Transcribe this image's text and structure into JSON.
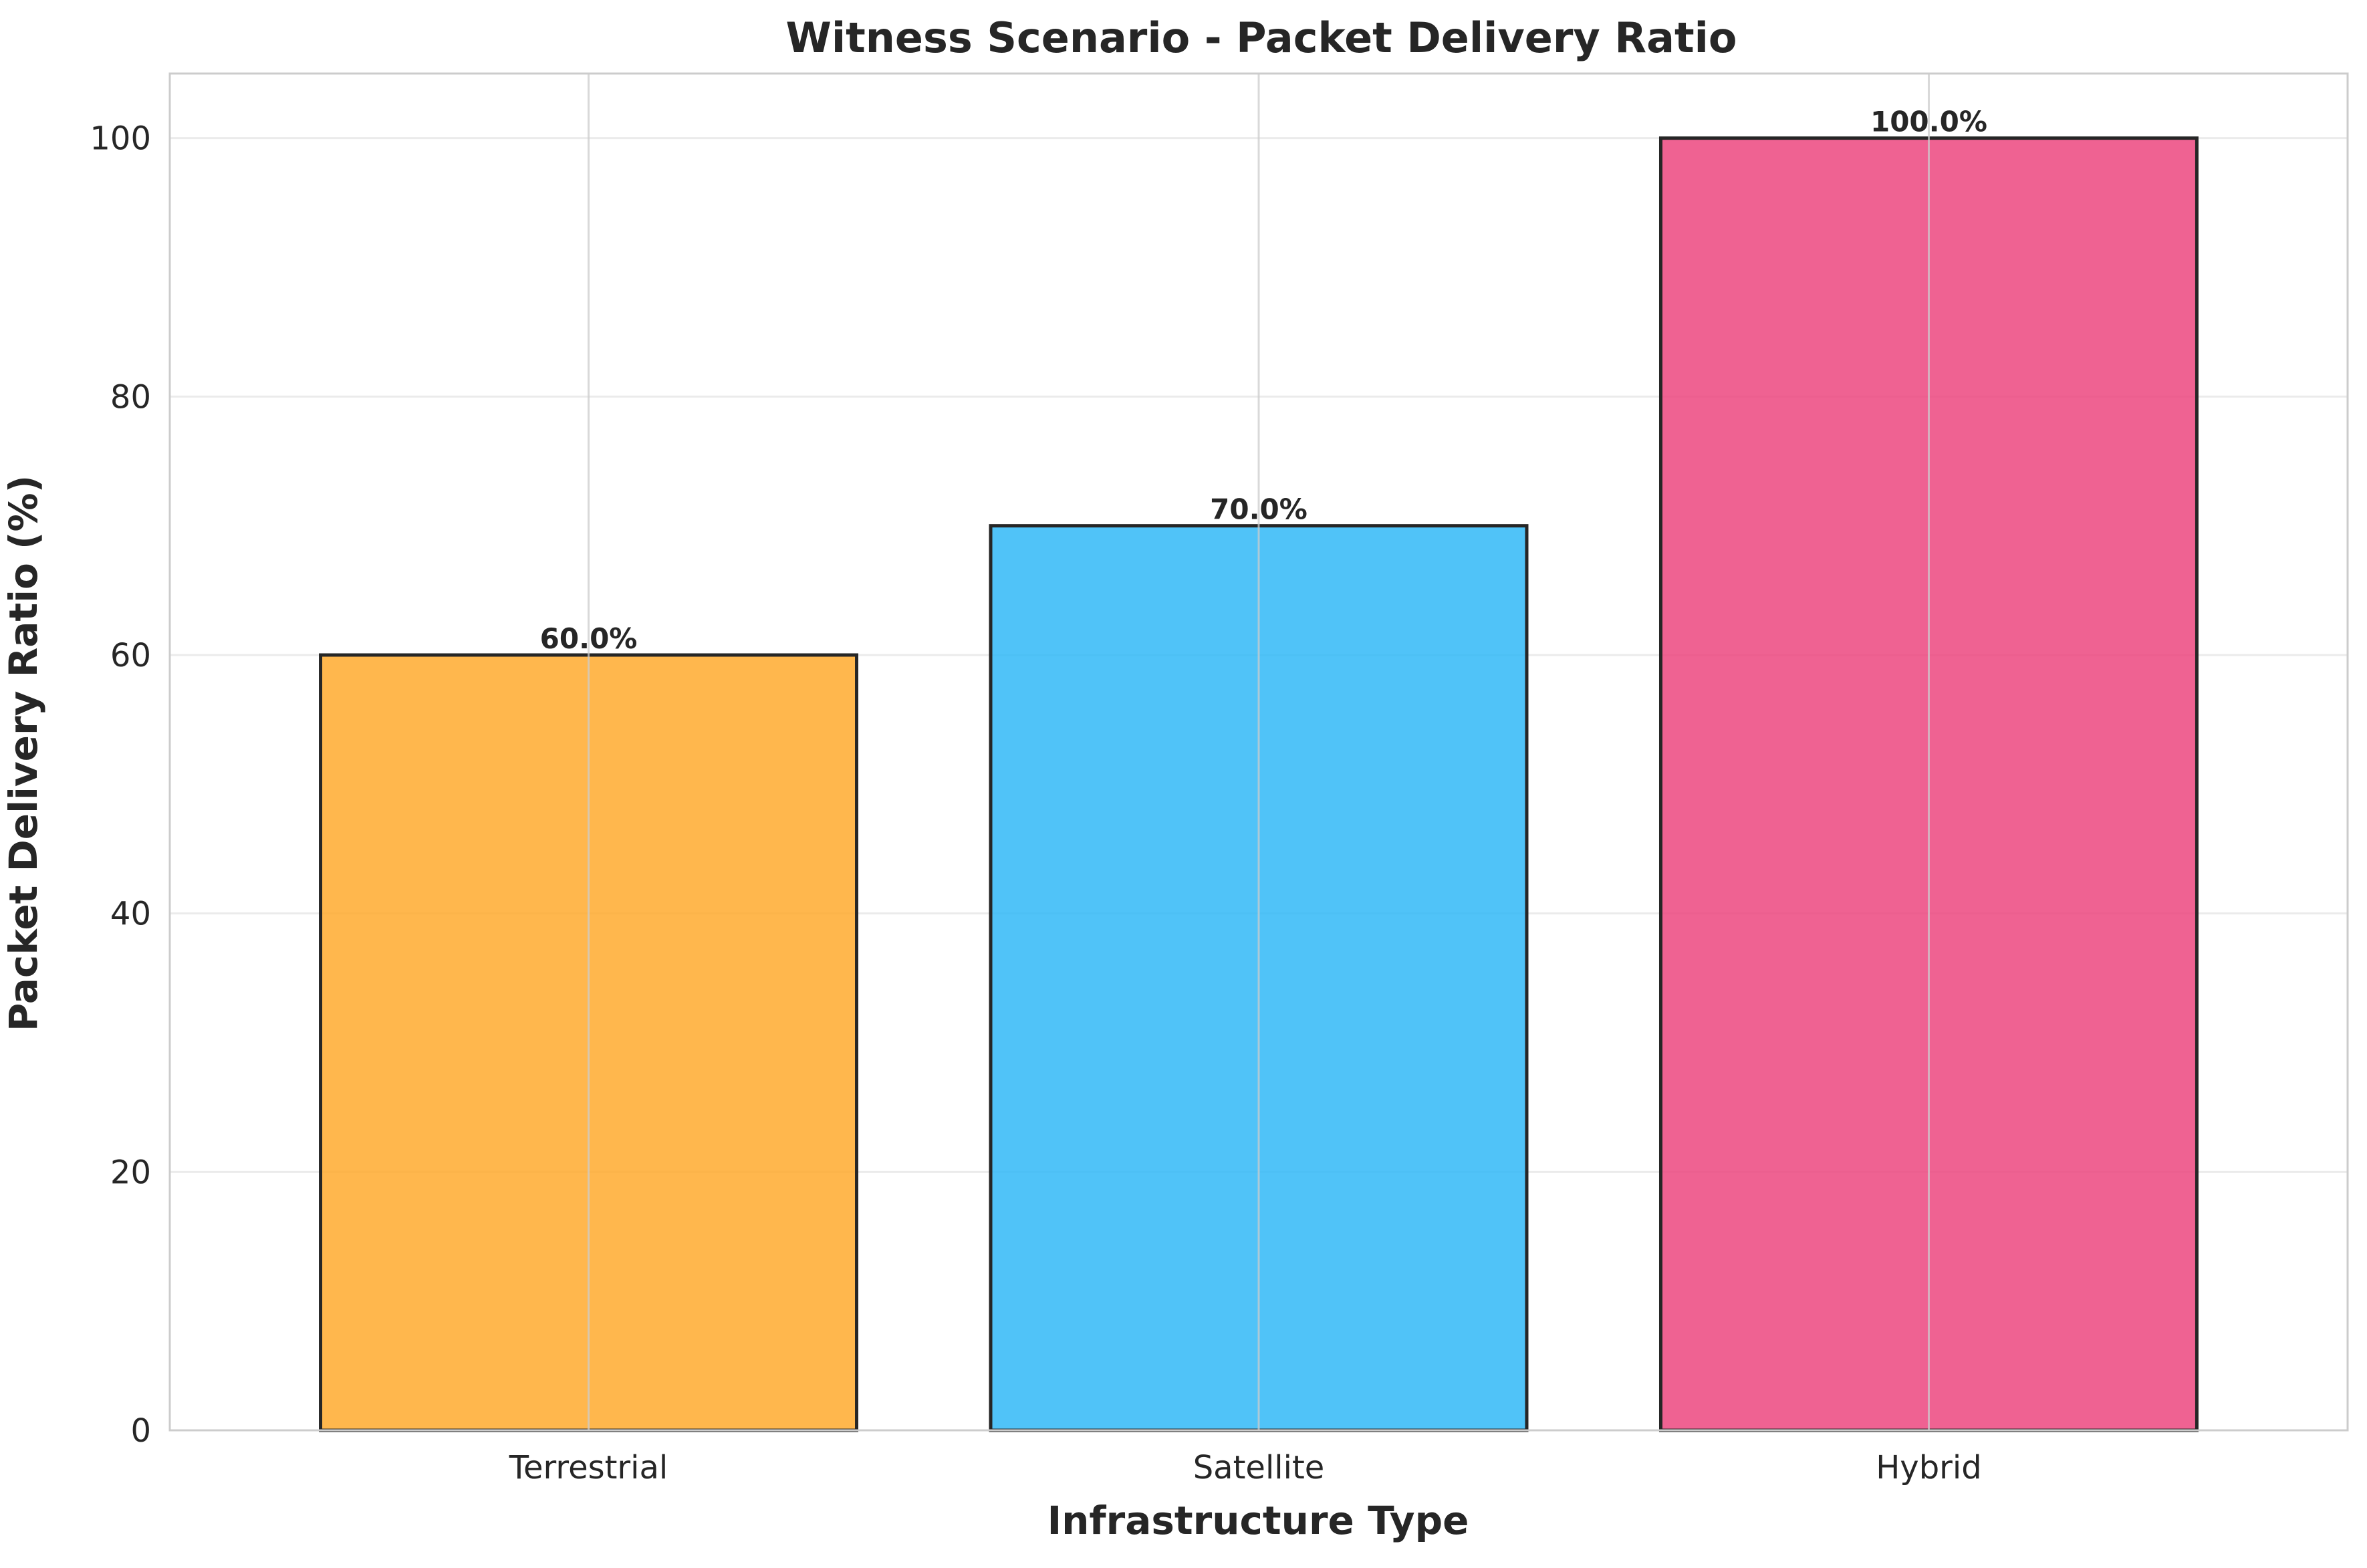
{
  "chart_data": {
    "type": "bar",
    "title": "Witness Scenario - Packet Delivery Ratio",
    "xlabel": "Infrastructure Type",
    "ylabel": "Packet Delivery Ratio (%)",
    "categories": [
      "Terrestrial",
      "Satellite",
      "Hybrid"
    ],
    "values": [
      60.0,
      70.0,
      100.0
    ],
    "value_labels": [
      "60.0%",
      "70.0%",
      "100.0%"
    ],
    "colors": [
      "#FFA726",
      "#29B6F6",
      "#EC407A"
    ],
    "ylim": [
      0,
      105
    ],
    "yticks": [
      0,
      20,
      40,
      60,
      80,
      100
    ],
    "grid": true,
    "legend": "none"
  }
}
